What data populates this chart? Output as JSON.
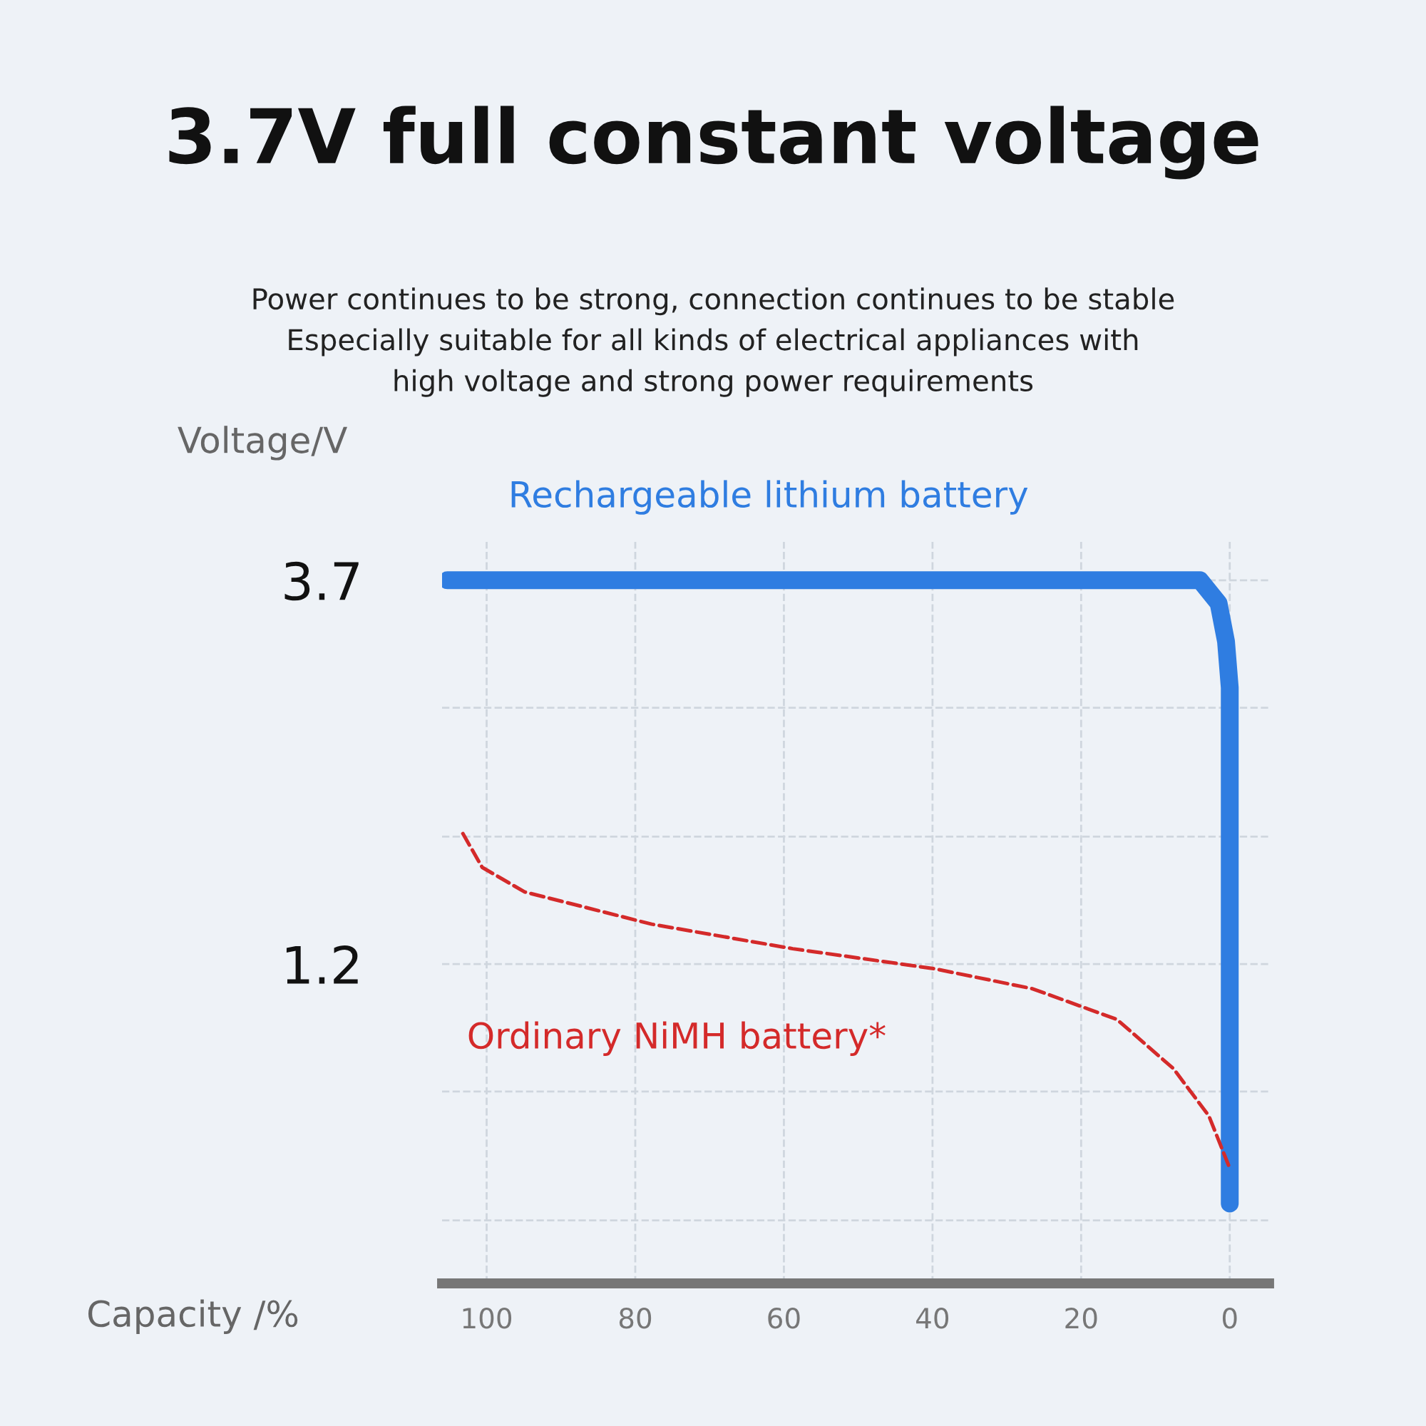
{
  "chart_data": {
    "type": "line",
    "title": "3.7V full constant voltage",
    "subtitle": "Power continues to be strong, connection continues to be stable\nEspecially suitable for all kinds of electrical appliances with\nhigh voltage and strong power requirements",
    "xlabel": "Capacity /%",
    "ylabel": "Voltage/V",
    "xlim": [
      106,
      -5.3
    ],
    "xticks": [
      100,
      80,
      60,
      40,
      20,
      0
    ],
    "ylim": [
      -0.88,
      3.95
    ],
    "yticks": [
      3.7,
      {
        "value": 2.87,
        "label": null
      },
      {
        "value": 2.03,
        "label": null
      },
      1.2,
      {
        "value": 0.37,
        "label": null
      },
      {
        "value": -0.47,
        "label": null
      }
    ],
    "grid": true,
    "marker": "none",
    "series": [
      {
        "name": "Rechargeable lithium battery",
        "color": "#2f7de1",
        "line_style": "solid",
        "x": [
          105.3,
          4,
          1.5,
          0.5,
          0,
          0
        ],
        "values": [
          3.7,
          3.7,
          3.55,
          3.3,
          3.0,
          -0.36
        ]
      },
      {
        "name": "Ordinary NiMH battery*",
        "color": "#d42a2a",
        "line_style": "dashed",
        "x": [
          103.2,
          100.6,
          94.9,
          77.8,
          58.8,
          39.8,
          26.6,
          15.2,
          7.6,
          2.8,
          0
        ],
        "values": [
          2.05,
          1.83,
          1.67,
          1.46,
          1.3,
          1.17,
          1.04,
          0.84,
          0.52,
          0.21,
          -0.13
        ]
      }
    ]
  }
}
